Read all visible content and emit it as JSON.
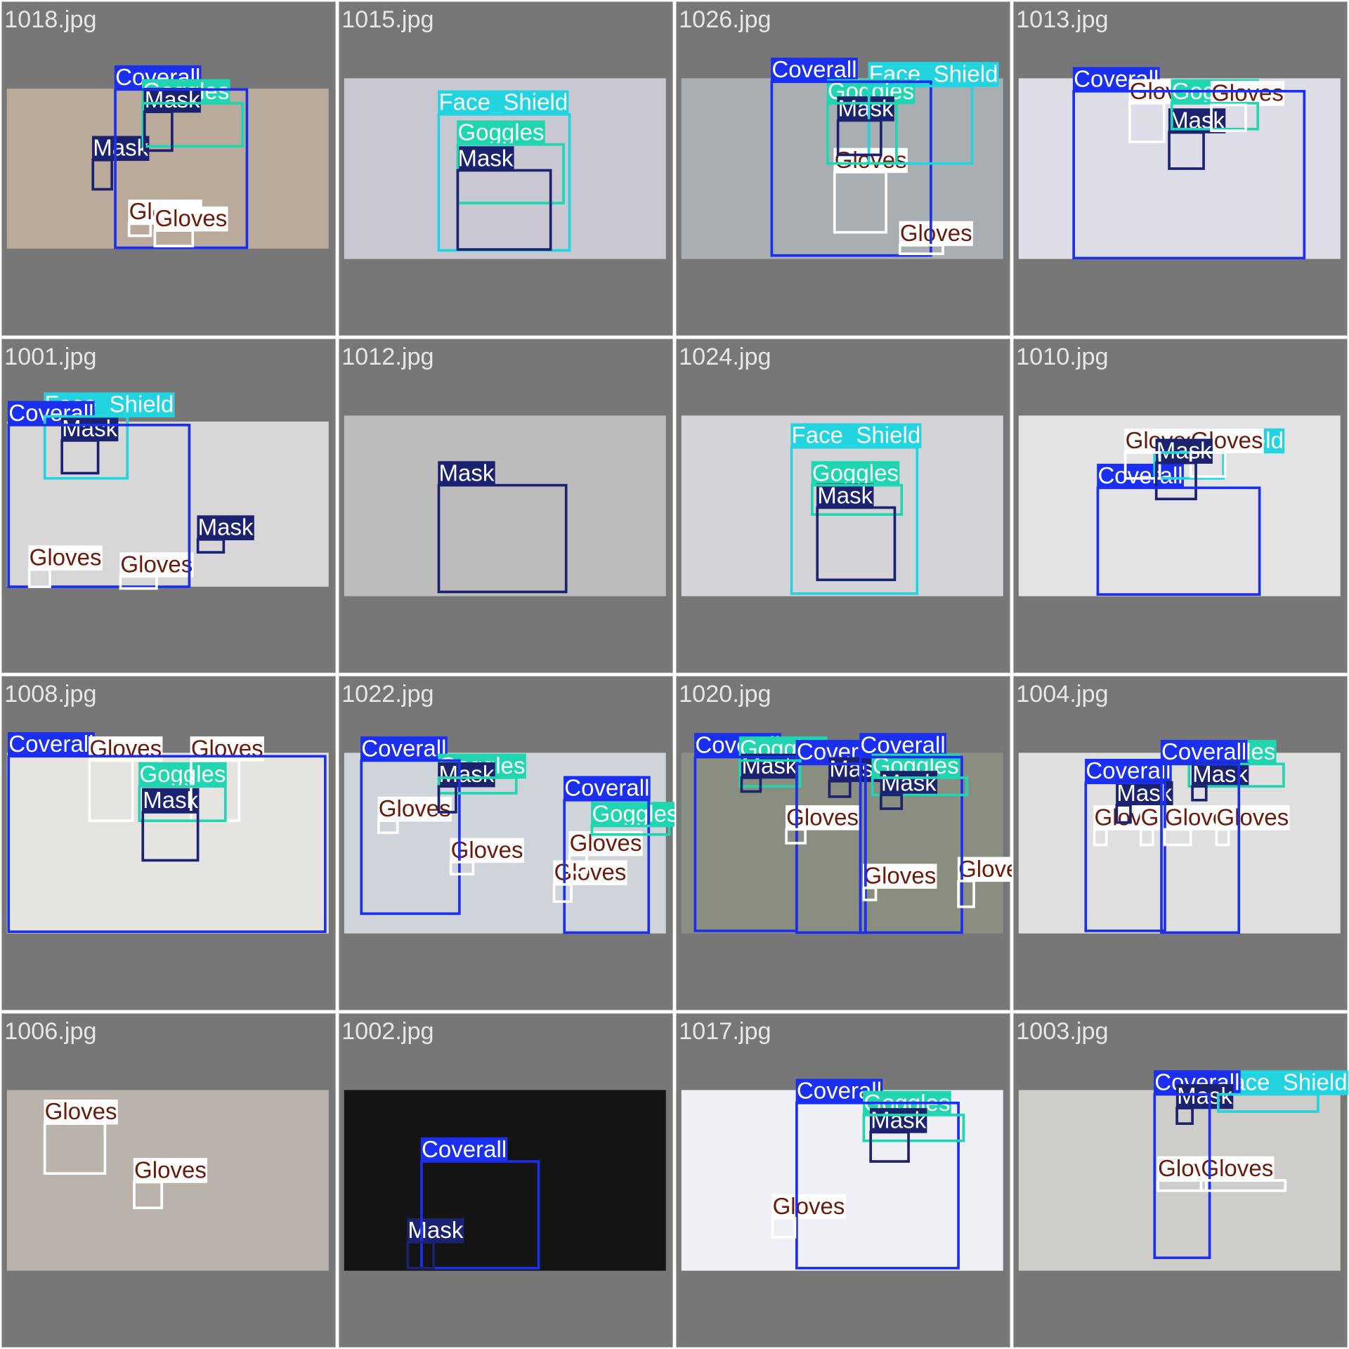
{
  "tiles": [
    {
      "file": "1018.jpg",
      "detections": [
        {
          "label": "Coverall",
          "color": "#1a2ff0"
        },
        {
          "label": "Goggles",
          "color": "#1fd6b0"
        },
        {
          "label": "Mask",
          "color": "#1b2270"
        },
        {
          "label": "Mask",
          "color": "#1b2270"
        },
        {
          "label": "Gloves",
          "color": "#ffffff"
        },
        {
          "label": "Gloves",
          "color": "#ffffff"
        }
      ]
    },
    {
      "file": "1015.jpg",
      "detections": [
        {
          "label": "Face_Shield",
          "color": "#22d3e0"
        },
        {
          "label": "Goggles",
          "color": "#1fd6b0"
        },
        {
          "label": "Mask",
          "color": "#1b2270"
        }
      ]
    },
    {
      "file": "1026.jpg",
      "detections": [
        {
          "label": "Coverall",
          "color": "#1a2ff0"
        },
        {
          "label": "Face_Shield",
          "color": "#22d3e0"
        },
        {
          "label": "Goggles",
          "color": "#1fd6b0"
        },
        {
          "label": "Mask",
          "color": "#1b2270"
        },
        {
          "label": "Gloves",
          "color": "#ffffff"
        },
        {
          "label": "Gloves",
          "color": "#ffffff"
        }
      ]
    },
    {
      "file": "1013.jpg",
      "detections": [
        {
          "label": "Coverall",
          "color": "#1a2ff0"
        },
        {
          "label": "Gloves",
          "color": "#ffffff"
        },
        {
          "label": "Goggles",
          "color": "#1fd6b0"
        },
        {
          "label": "Gloves",
          "color": "#ffffff"
        },
        {
          "label": "Mask",
          "color": "#1b2270"
        }
      ]
    },
    {
      "file": "1001.jpg",
      "detections": [
        {
          "label": "Face_Shield",
          "color": "#22d3e0"
        },
        {
          "label": "Coverall",
          "color": "#1a2ff0"
        },
        {
          "label": "Mask",
          "color": "#1b2270"
        },
        {
          "label": "Mask",
          "color": "#1b2270"
        },
        {
          "label": "Gloves",
          "color": "#ffffff"
        },
        {
          "label": "Gloves",
          "color": "#ffffff"
        }
      ]
    },
    {
      "file": "1012.jpg",
      "detections": [
        {
          "label": "Mask",
          "color": "#1b2270"
        }
      ]
    },
    {
      "file": "1024.jpg",
      "detections": [
        {
          "label": "Face_Shield",
          "color": "#22d3e0"
        },
        {
          "label": "Goggles",
          "color": "#1fd6b0"
        },
        {
          "label": "Mask",
          "color": "#1b2270"
        }
      ]
    },
    {
      "file": "1010.jpg",
      "detections": [
        {
          "label": "Face_Shield",
          "color": "#22d3e0"
        },
        {
          "label": "Gloves",
          "color": "#ffffff"
        },
        {
          "label": "Gloves",
          "color": "#ffffff"
        },
        {
          "label": "Mask",
          "color": "#1b2270"
        },
        {
          "label": "Coverall",
          "color": "#1a2ff0"
        }
      ]
    },
    {
      "file": "1008.jpg",
      "detections": [
        {
          "label": "Coverall",
          "color": "#1a2ff0"
        },
        {
          "label": "Gloves",
          "color": "#ffffff"
        },
        {
          "label": "Gloves",
          "color": "#ffffff"
        },
        {
          "label": "Goggles",
          "color": "#1fd6b0"
        },
        {
          "label": "Mask",
          "color": "#1b2270"
        }
      ]
    },
    {
      "file": "1022.jpg",
      "detections": [
        {
          "label": "Coverall",
          "color": "#1a2ff0"
        },
        {
          "label": "Goggles",
          "color": "#1fd6b0"
        },
        {
          "label": "Mask",
          "color": "#1b2270"
        },
        {
          "label": "Gloves",
          "color": "#ffffff"
        },
        {
          "label": "Gloves",
          "color": "#ffffff"
        },
        {
          "label": "Coverall",
          "color": "#1a2ff0"
        },
        {
          "label": "Goggles",
          "color": "#1fd6b0"
        },
        {
          "label": "Gloves",
          "color": "#ffffff"
        },
        {
          "label": "Gloves",
          "color": "#ffffff"
        }
      ]
    },
    {
      "file": "1020.jpg",
      "detections": [
        {
          "label": "Coverall",
          "color": "#1a2ff0"
        },
        {
          "label": "Goggles",
          "color": "#1fd6b0"
        },
        {
          "label": "Mask",
          "color": "#1b2270"
        },
        {
          "label": "Coverall",
          "color": "#1a2ff0"
        },
        {
          "label": "Mask",
          "color": "#1b2270"
        },
        {
          "label": "Gloves",
          "color": "#ffffff"
        },
        {
          "label": "Coverall",
          "color": "#1a2ff0"
        },
        {
          "label": "Goggles",
          "color": "#1fd6b0"
        },
        {
          "label": "Mask",
          "color": "#1b2270"
        },
        {
          "label": "Gloves",
          "color": "#ffffff"
        },
        {
          "label": "Gloves",
          "color": "#ffffff"
        }
      ]
    },
    {
      "file": "1004.jpg",
      "detections": [
        {
          "label": "Coverall",
          "color": "#1a2ff0"
        },
        {
          "label": "Mask",
          "color": "#1b2270"
        },
        {
          "label": "Gloves",
          "color": "#ffffff"
        },
        {
          "label": "Gloves",
          "color": "#ffffff"
        },
        {
          "label": "Goggles",
          "color": "#1fd6b0"
        },
        {
          "label": "Coverall",
          "color": "#1a2ff0"
        },
        {
          "label": "Mask",
          "color": "#1b2270"
        },
        {
          "label": "Gloves",
          "color": "#ffffff"
        },
        {
          "label": "Gloves",
          "color": "#ffffff"
        }
      ]
    },
    {
      "file": "1006.jpg",
      "detections": [
        {
          "label": "Gloves",
          "color": "#ffffff"
        },
        {
          "label": "Gloves",
          "color": "#ffffff"
        }
      ]
    },
    {
      "file": "1002.jpg",
      "detections": [
        {
          "label": "Coverall",
          "color": "#1a2ff0"
        },
        {
          "label": "Mask",
          "color": "#1b2270"
        }
      ]
    },
    {
      "file": "1017.jpg",
      "detections": [
        {
          "label": "Coverall",
          "color": "#1a2ff0"
        },
        {
          "label": "Goggles",
          "color": "#1fd6b0"
        },
        {
          "label": "Mask",
          "color": "#1b2270"
        },
        {
          "label": "Gloves",
          "color": "#ffffff"
        }
      ]
    },
    {
      "file": "1003.jpg",
      "detections": [
        {
          "label": "Face_Shield",
          "color": "#22d3e0"
        },
        {
          "label": "Coverall",
          "color": "#1a2ff0"
        },
        {
          "label": "Mask",
          "color": "#1b2270"
        },
        {
          "label": "Gloves",
          "color": "#ffffff"
        },
        {
          "label": "Gloves",
          "color": "#ffffff"
        }
      ]
    }
  ]
}
